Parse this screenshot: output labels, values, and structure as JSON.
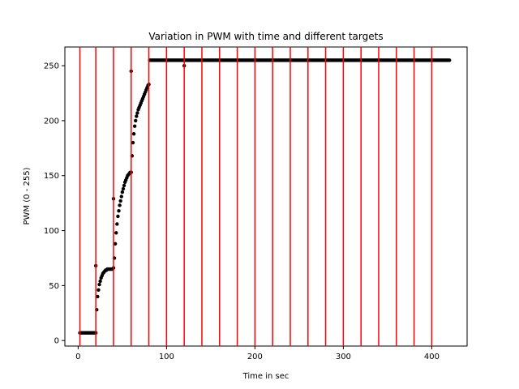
{
  "chart_data": {
    "type": "scatter",
    "title": "Variation in PWM with time and different targets",
    "xlabel": "Time in sec",
    "ylabel": "PWM (0 - 255)",
    "xlim": [
      -15,
      440
    ],
    "ylim": [
      -5,
      267
    ],
    "xticks": [
      0,
      100,
      200,
      300,
      400
    ],
    "yticks": [
      0,
      50,
      100,
      150,
      200,
      250
    ],
    "grid": false,
    "legend": "none",
    "colors": {
      "points": "#000000",
      "target_lines": "#ff0000"
    },
    "target_lines_x": [
      2,
      20,
      40,
      60,
      80,
      100,
      120,
      140,
      160,
      180,
      200,
      220,
      240,
      260,
      280,
      300,
      320,
      340,
      360,
      380,
      400
    ],
    "series": [
      {
        "marker": "circle",
        "x": [
          2,
          5,
          8,
          11,
          14,
          17,
          20,
          21,
          22,
          23,
          24,
          25,
          26,
          27,
          28,
          29,
          30,
          31,
          32,
          33,
          34,
          35,
          36,
          37,
          38,
          39,
          40,
          41,
          42,
          43,
          44,
          45,
          46,
          47,
          48,
          49,
          50,
          51,
          52,
          53,
          54,
          55,
          56,
          57,
          58,
          59,
          60,
          61,
          62,
          63,
          64,
          65,
          66,
          67,
          68,
          69,
          70,
          71,
          72,
          73,
          74,
          75,
          76,
          77,
          78,
          79,
          80,
          81,
          82,
          83,
          84,
          85,
          86,
          87,
          88,
          89,
          90,
          91,
          92,
          93,
          94,
          95,
          96,
          97,
          98,
          99,
          100,
          110,
          120,
          140,
          160,
          180,
          200,
          220,
          240,
          260,
          280,
          300,
          320,
          340,
          360,
          380,
          400,
          420
        ],
        "y": [
          7,
          7,
          7,
          7,
          7,
          7,
          7,
          28,
          40,
          46,
          51,
          54,
          57,
          59,
          61,
          62,
          63,
          64,
          64,
          65,
          65,
          65,
          65,
          65,
          65,
          65,
          66,
          75,
          88,
          98,
          106,
          113,
          118,
          123,
          127,
          131,
          135,
          138,
          141,
          144,
          146,
          148,
          150,
          151,
          152,
          153,
          153,
          168,
          180,
          188,
          195,
          200,
          204,
          207,
          210,
          212,
          214,
          216,
          218,
          220,
          222,
          224,
          226,
          228,
          230,
          232,
          233,
          255,
          255,
          255,
          255,
          255,
          255,
          255,
          255,
          255,
          255,
          255,
          255,
          255,
          255,
          255,
          255,
          255,
          255,
          255,
          255,
          255,
          255,
          255,
          255,
          255,
          255,
          255,
          255,
          255,
          255,
          255,
          255,
          255,
          255,
          255,
          255,
          255
        ]
      },
      {
        "marker": "circle",
        "x": [
          20,
          40,
          60,
          120
        ],
        "y": [
          68,
          129,
          245,
          250
        ]
      }
    ]
  }
}
